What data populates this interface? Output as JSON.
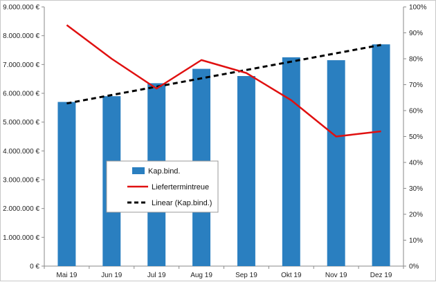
{
  "chart_data": {
    "type": "bar",
    "categories": [
      "Mai 19",
      "Jun 19",
      "Jul 19",
      "Aug 19",
      "Sep 19",
      "Okt 19",
      "Nov 19",
      "Dez 19"
    ],
    "series": [
      {
        "name": "Kap.bind.",
        "kind": "bar",
        "axis": "left",
        "color": "#2a7fc0",
        "values": [
          5700000,
          5900000,
          6350000,
          6850000,
          6600000,
          7250000,
          7150000,
          7700000
        ]
      },
      {
        "name": "Liefertermintreue",
        "kind": "line",
        "axis": "right",
        "color": "#e01010",
        "values": [
          0.93,
          0.8,
          0.685,
          0.795,
          0.745,
          0.64,
          0.5,
          0.52
        ]
      },
      {
        "name": "Linear (Kap.bind.)",
        "kind": "trendline",
        "axis": "left",
        "color": "#000000",
        "dashed": true,
        "values": [
          5650000,
          5940000,
          6230000,
          6520000,
          6810000,
          7100000,
          7390000,
          7680000
        ]
      }
    ],
    "y_left": {
      "ylim": [
        0,
        9000000
      ],
      "ticks": [
        0,
        1000000,
        2000000,
        3000000,
        4000000,
        5000000,
        6000000,
        7000000,
        8000000,
        9000000
      ],
      "tick_labels": [
        "0 €",
        "1.000.000 €",
        "2.000.000 €",
        "3.000.000 €",
        "4.000.000 €",
        "5.000.000 €",
        "6.000.000 €",
        "7.000.000 €",
        "8.000.000 €",
        "9.000.000 €"
      ]
    },
    "y_right": {
      "ylim": [
        0,
        1
      ],
      "ticks": [
        0,
        0.1,
        0.2,
        0.3,
        0.4,
        0.5,
        0.6,
        0.7,
        0.8,
        0.9,
        1.0
      ],
      "tick_labels": [
        "0%",
        "10%",
        "20%",
        "30%",
        "40%",
        "50%",
        "60%",
        "70%",
        "80%",
        "90%",
        "100%"
      ]
    },
    "title": "",
    "xlabel": "",
    "ylabel": "",
    "grid": false,
    "legend_position": "center-left"
  }
}
